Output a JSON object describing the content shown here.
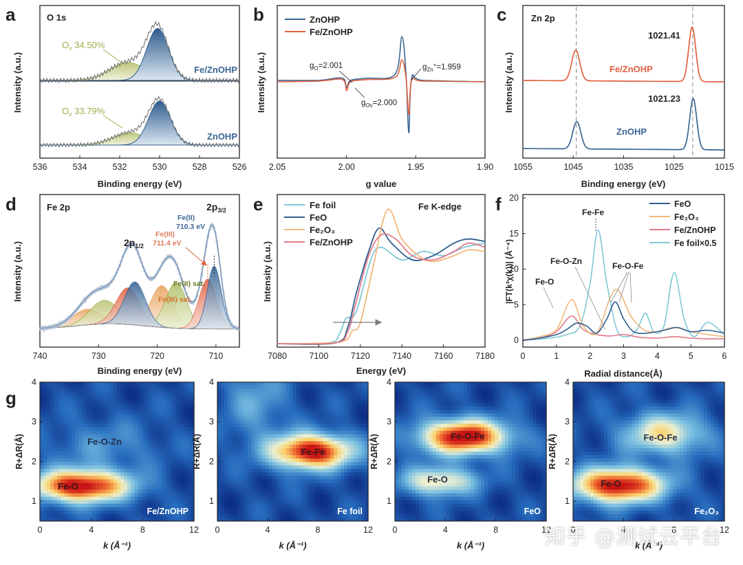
{
  "colors": {
    "blue": "#3a6593",
    "red": "#e0603f",
    "orange": "#f2b77a",
    "pink": "#e07a8a",
    "cyan": "#7fc8d6",
    "olive": "#9aae4c",
    "gray": "#888888",
    "dark": "#222222"
  },
  "watermark": "知乎 @测试云平台",
  "panels": {
    "a": {
      "letter": "a",
      "tag": "O 1s",
      "type": "line",
      "xlabel": "Binding energy (eV)",
      "ylabel": "Intensity (a.u.)",
      "xlim": [
        536,
        526
      ],
      "ylim": [
        0,
        2
      ],
      "xticks": [
        "536",
        "534",
        "532",
        "530",
        "528",
        "526"
      ],
      "labels": {
        "top_sample": "Fe/ZnOHP",
        "top_ov": "O",
        "top_ov_value": "34.50%",
        "bottom_sample": "ZnOHP",
        "bottom_ov": "O",
        "bottom_ov_value": "33.79%",
        "ov_sub": "v"
      },
      "series": [
        {
          "name": "Fe/ZnOHP",
          "peaks": [
            {
              "center": 530.1,
              "height": 0.72,
              "width": 0.55
            },
            {
              "center": 531.6,
              "height": 0.25,
              "width": 0.9
            }
          ],
          "offset": 1.0
        },
        {
          "name": "ZnOHP",
          "peaks": [
            {
              "center": 530.0,
              "height": 0.72,
              "width": 0.55
            },
            {
              "center": 531.5,
              "height": 0.2,
              "width": 0.85
            }
          ],
          "offset": 0.0
        }
      ]
    },
    "b": {
      "letter": "b",
      "type": "line",
      "xlabel": "g value",
      "ylabel": "Intensity (a.u.)",
      "xlim": [
        2.05,
        1.9
      ],
      "ylim": [
        -1,
        1
      ],
      "xticks": [
        "2.05",
        "2.00",
        "1.95",
        "1.90"
      ],
      "legend": [
        "ZnOHP",
        "Fe/ZnOHP"
      ],
      "annotations": {
        "go": "g",
        "go_sub": "O",
        "go_value": "=2.001",
        "gov": "g",
        "gov_sub": "Ov",
        "gov_value": "=2.000",
        "gzn": "g",
        "gzn_sub": "Zn",
        "gzn_sup": "+",
        "gzn_value": "=1.959"
      },
      "series": [
        {
          "name": "ZnOHP",
          "x": [
            2.05,
            2.02,
            2.003,
            2.0,
            1.997,
            1.985,
            1.965,
            1.96,
            1.957,
            1.955,
            1.953,
            1.945,
            1.9
          ],
          "y": [
            0.02,
            0.02,
            0.05,
            -0.08,
            0.02,
            0.05,
            0.1,
            0.62,
            0.1,
            -0.7,
            0.05,
            0.02,
            0.0
          ]
        },
        {
          "name": "Fe/ZnOHP",
          "x": [
            2.05,
            2.02,
            2.003,
            2.0,
            1.997,
            1.985,
            1.965,
            1.96,
            1.957,
            1.955,
            1.953,
            1.945,
            1.9
          ],
          "y": [
            0.0,
            0.01,
            0.03,
            -0.12,
            0.0,
            0.03,
            0.06,
            0.3,
            0.05,
            -0.45,
            0.02,
            0.01,
            0.0
          ]
        }
      ]
    },
    "c": {
      "letter": "c",
      "tag": "Zn 2p",
      "type": "line",
      "xlabel": "Binding energy (eV)",
      "ylabel": "Intensity (a.u.)",
      "xlim": [
        1055,
        1015
      ],
      "ylim": [
        0,
        2.2
      ],
      "xticks": [
        "1055",
        "1045",
        "1035",
        "1025",
        "1015"
      ],
      "labels": {
        "top_sample": "Fe/ZnOHP",
        "bottom_sample": "ZnOHP",
        "top_peak": "1021.41",
        "bottom_peak": "1021.23"
      },
      "series": [
        {
          "name": "Fe/ZnOHP",
          "peaks": [
            {
              "center": 1044.5,
              "height": 0.45,
              "width": 0.8
            },
            {
              "center": 1021.4,
              "height": 0.8,
              "width": 0.7
            }
          ],
          "offset": 1.1
        },
        {
          "name": "ZnOHP",
          "peaks": [
            {
              "center": 1044.3,
              "height": 0.4,
              "width": 0.8
            },
            {
              "center": 1021.2,
              "height": 0.75,
              "width": 0.7
            }
          ],
          "offset": 0.1
        }
      ],
      "dashed_x": [
        1044.4,
        1021.3
      ]
    },
    "d": {
      "letter": "d",
      "tag": "Fe 2p",
      "type": "line",
      "xlabel": "Binding energy (eV)",
      "ylabel": "Intensity (a.u.)",
      "xlim": [
        740,
        706
      ],
      "ylim": [
        0,
        1
      ],
      "xticks": [
        "740",
        "730",
        "720",
        "710"
      ],
      "labels": {
        "p32": "2p",
        "p32_sub": "3/2",
        "p12": "2p",
        "p12_sub": "1/2",
        "fe2": "Fe(II)",
        "fe2_value": "710.3 eV",
        "fe3": "Fe(III)",
        "fe3_value": "711.4 eV",
        "fe2sat": "Fe(II) sat.",
        "fe3sat": "Fe(III) sat."
      },
      "components": [
        {
          "name": "Fe(II) 2p3/2",
          "center": 710.3,
          "height": 0.48,
          "width": 1.2
        },
        {
          "name": "Fe(III) 2p3/2",
          "center": 711.4,
          "height": 0.38,
          "width": 1.5
        },
        {
          "name": "Fe(II) 2p1/2",
          "center": 723.8,
          "height": 0.33,
          "width": 1.8
        },
        {
          "name": "Fe(III) 2p1/2",
          "center": 725.0,
          "height": 0.28,
          "width": 2.0
        },
        {
          "name": "Fe(II) sat.",
          "center": 716.8,
          "height": 0.35,
          "width": 1.8
        },
        {
          "name": "Fe(III) sat.",
          "center": 719.2,
          "height": 0.32,
          "width": 1.9
        },
        {
          "name": "sat1",
          "center": 729.0,
          "height": 0.18,
          "width": 2.5
        },
        {
          "name": "sat2",
          "center": 732.0,
          "height": 0.12,
          "width": 2.5
        }
      ]
    },
    "e": {
      "letter": "e",
      "tag": "Fe K-edge",
      "type": "line",
      "xlabel": "Energy (eV)",
      "ylabel": "Intensity (a.u.)",
      "xlim": [
        7080,
        7180
      ],
      "ylim": [
        0,
        1.6
      ],
      "xticks": [
        "7080",
        "7100",
        "7120",
        "7140",
        "7160",
        "7180"
      ],
      "legend": [
        "Fe foil",
        "FeO",
        "Fe₂O₃",
        "Fe/ZnOHP"
      ],
      "series": [
        {
          "name": "Fe foil",
          "x": [
            7080,
            7105,
            7110,
            7113,
            7118,
            7125,
            7130,
            7140,
            7150,
            7160,
            7170,
            7180
          ],
          "y": [
            0,
            0.01,
            0.12,
            0.3,
            0.38,
            1.0,
            1.15,
            1.0,
            1.1,
            1.05,
            1.15,
            1.2
          ]
        },
        {
          "name": "FeO",
          "x": [
            7080,
            7108,
            7114,
            7118,
            7124,
            7129,
            7135,
            7145,
            7155,
            7165,
            7172,
            7180
          ],
          "y": [
            0,
            0.01,
            0.2,
            0.6,
            1.1,
            1.38,
            1.2,
            1.0,
            1.05,
            1.2,
            1.25,
            1.22
          ]
        },
        {
          "name": "Fe₂O₃",
          "x": [
            7080,
            7110,
            7116,
            7120,
            7126,
            7133,
            7140,
            7148,
            7155,
            7165,
            7172,
            7180
          ],
          "y": [
            0,
            0.02,
            0.15,
            0.25,
            0.9,
            1.6,
            1.25,
            1.05,
            0.98,
            1.05,
            1.12,
            1.1
          ]
        },
        {
          "name": "Fe/ZnOHP",
          "x": [
            7080,
            7108,
            7114,
            7118,
            7124,
            7130,
            7137,
            7145,
            7155,
            7165,
            7172,
            7180
          ],
          "y": [
            0,
            0.01,
            0.15,
            0.5,
            1.05,
            1.3,
            1.25,
            1.05,
            1.0,
            1.1,
            1.2,
            1.15
          ]
        }
      ]
    },
    "f": {
      "letter": "f",
      "type": "line",
      "xlabel": "Radial distance(Å)",
      "ylabel": "|FT(k³χ(k))| (Å⁻⁴)",
      "xlim": [
        0,
        6
      ],
      "ylim": [
        0,
        20
      ],
      "xticks": [
        "0",
        "1",
        "2",
        "3",
        "4",
        "5",
        "6"
      ],
      "yticks": [
        "0",
        "5",
        "10",
        "15",
        "20"
      ],
      "legend": [
        "FeO",
        "Fe₂O₃",
        "Fe/ZnOHP",
        "Fe foil×0.5"
      ],
      "annotations": {
        "fefe": "Fe-Fe",
        "feozn": "Fe-O-Zn",
        "feofe": "Fe-O-Fe",
        "feo": "Fe-O"
      },
      "series": [
        {
          "name": "FeO",
          "x": [
            0,
            0.5,
            1.0,
            1.3,
            1.6,
            1.9,
            2.2,
            2.5,
            2.75,
            3.0,
            3.3,
            3.7,
            4.2,
            4.6,
            5.0,
            5.5,
            6.0
          ],
          "y": [
            0,
            0.3,
            0.8,
            1.5,
            2.4,
            2.0,
            1.0,
            3.0,
            5.4,
            3.0,
            1.2,
            1.0,
            1.4,
            1.8,
            1.2,
            1.4,
            1.0
          ]
        },
        {
          "name": "Fe₂O₃",
          "x": [
            0,
            0.5,
            1.0,
            1.45,
            1.8,
            2.2,
            2.6,
            2.85,
            3.2,
            3.6,
            4.0,
            4.5,
            5.0,
            5.5,
            6.0
          ],
          "y": [
            0,
            0.5,
            1.5,
            5.7,
            2.0,
            1.0,
            6.0,
            7.0,
            3.5,
            1.5,
            1.2,
            1.8,
            1.2,
            0.8,
            0.5
          ]
        },
        {
          "name": "Fe/ZnOHP",
          "x": [
            0,
            0.5,
            1.0,
            1.45,
            1.8,
            2.2,
            2.6,
            3.0,
            3.5,
            4.0,
            4.5,
            5.0,
            5.5,
            6.0
          ],
          "y": [
            0,
            0.3,
            1.2,
            3.4,
            1.5,
            0.8,
            0.6,
            0.8,
            0.4,
            0.3,
            0.5,
            0.3,
            0.2,
            0.2
          ]
        },
        {
          "name": "Fe foil×0.5",
          "x": [
            0,
            0.8,
            1.3,
            1.7,
            2.0,
            2.24,
            2.5,
            2.8,
            3.1,
            3.4,
            3.65,
            3.9,
            4.2,
            4.5,
            4.8,
            5.1,
            5.5,
            6.0
          ],
          "y": [
            0,
            0.3,
            0.8,
            2.0,
            8.0,
            15.5,
            8.0,
            1.5,
            0.5,
            1.5,
            3.8,
            1.2,
            2.0,
            9.5,
            3.0,
            0.5,
            2.5,
            0.8
          ]
        }
      ]
    },
    "g": {
      "letter": "g",
      "type": "heatmap",
      "xlabel": "k (Å⁻¹)",
      "ylabel": "R+ΔR(Å)",
      "xlim": [
        0,
        12
      ],
      "ylim": [
        0.5,
        4
      ],
      "xticks": [
        "0",
        "4",
        "8",
        "12"
      ],
      "yticks": [
        "1",
        "2",
        "3",
        "4"
      ],
      "maps": [
        {
          "sample": "Fe/ZnOHP",
          "labels": [
            "Fe-O",
            "Fe-O-Zn"
          ],
          "blobs": [
            {
              "k": 3.2,
              "r": 1.38,
              "intensity": 1.0,
              "sk": 2.6,
              "sr": 0.28
            },
            {
              "k": 5.0,
              "r": 2.4,
              "intensity": 0.15,
              "sk": 3.0,
              "sr": 0.45
            }
          ]
        },
        {
          "sample": "Fe foil",
          "labels": [
            "Fe-Fe"
          ],
          "blobs": [
            {
              "k": 7.5,
              "r": 2.25,
              "intensity": 1.0,
              "sk": 2.2,
              "sr": 0.3
            },
            {
              "k": 3.0,
              "r": 3.5,
              "intensity": 0.2,
              "sk": 1.8,
              "sr": 0.7
            }
          ]
        },
        {
          "sample": "FeO",
          "labels": [
            "Fe-O-Fe",
            "Fe-O"
          ],
          "blobs": [
            {
              "k": 5.5,
              "r": 2.62,
              "intensity": 1.0,
              "sk": 2.4,
              "sr": 0.3
            },
            {
              "k": 3.5,
              "r": 1.5,
              "intensity": 0.55,
              "sk": 2.0,
              "sr": 0.25
            }
          ]
        },
        {
          "sample": "Fe₂O₃",
          "labels": [
            "Fe-O",
            "Fe-O-Fe"
          ],
          "blobs": [
            {
              "k": 3.6,
              "r": 1.4,
              "intensity": 1.0,
              "sk": 2.5,
              "sr": 0.3
            },
            {
              "k": 7.2,
              "r": 2.7,
              "intensity": 0.55,
              "sk": 2.2,
              "sr": 0.35
            }
          ]
        }
      ]
    }
  }
}
